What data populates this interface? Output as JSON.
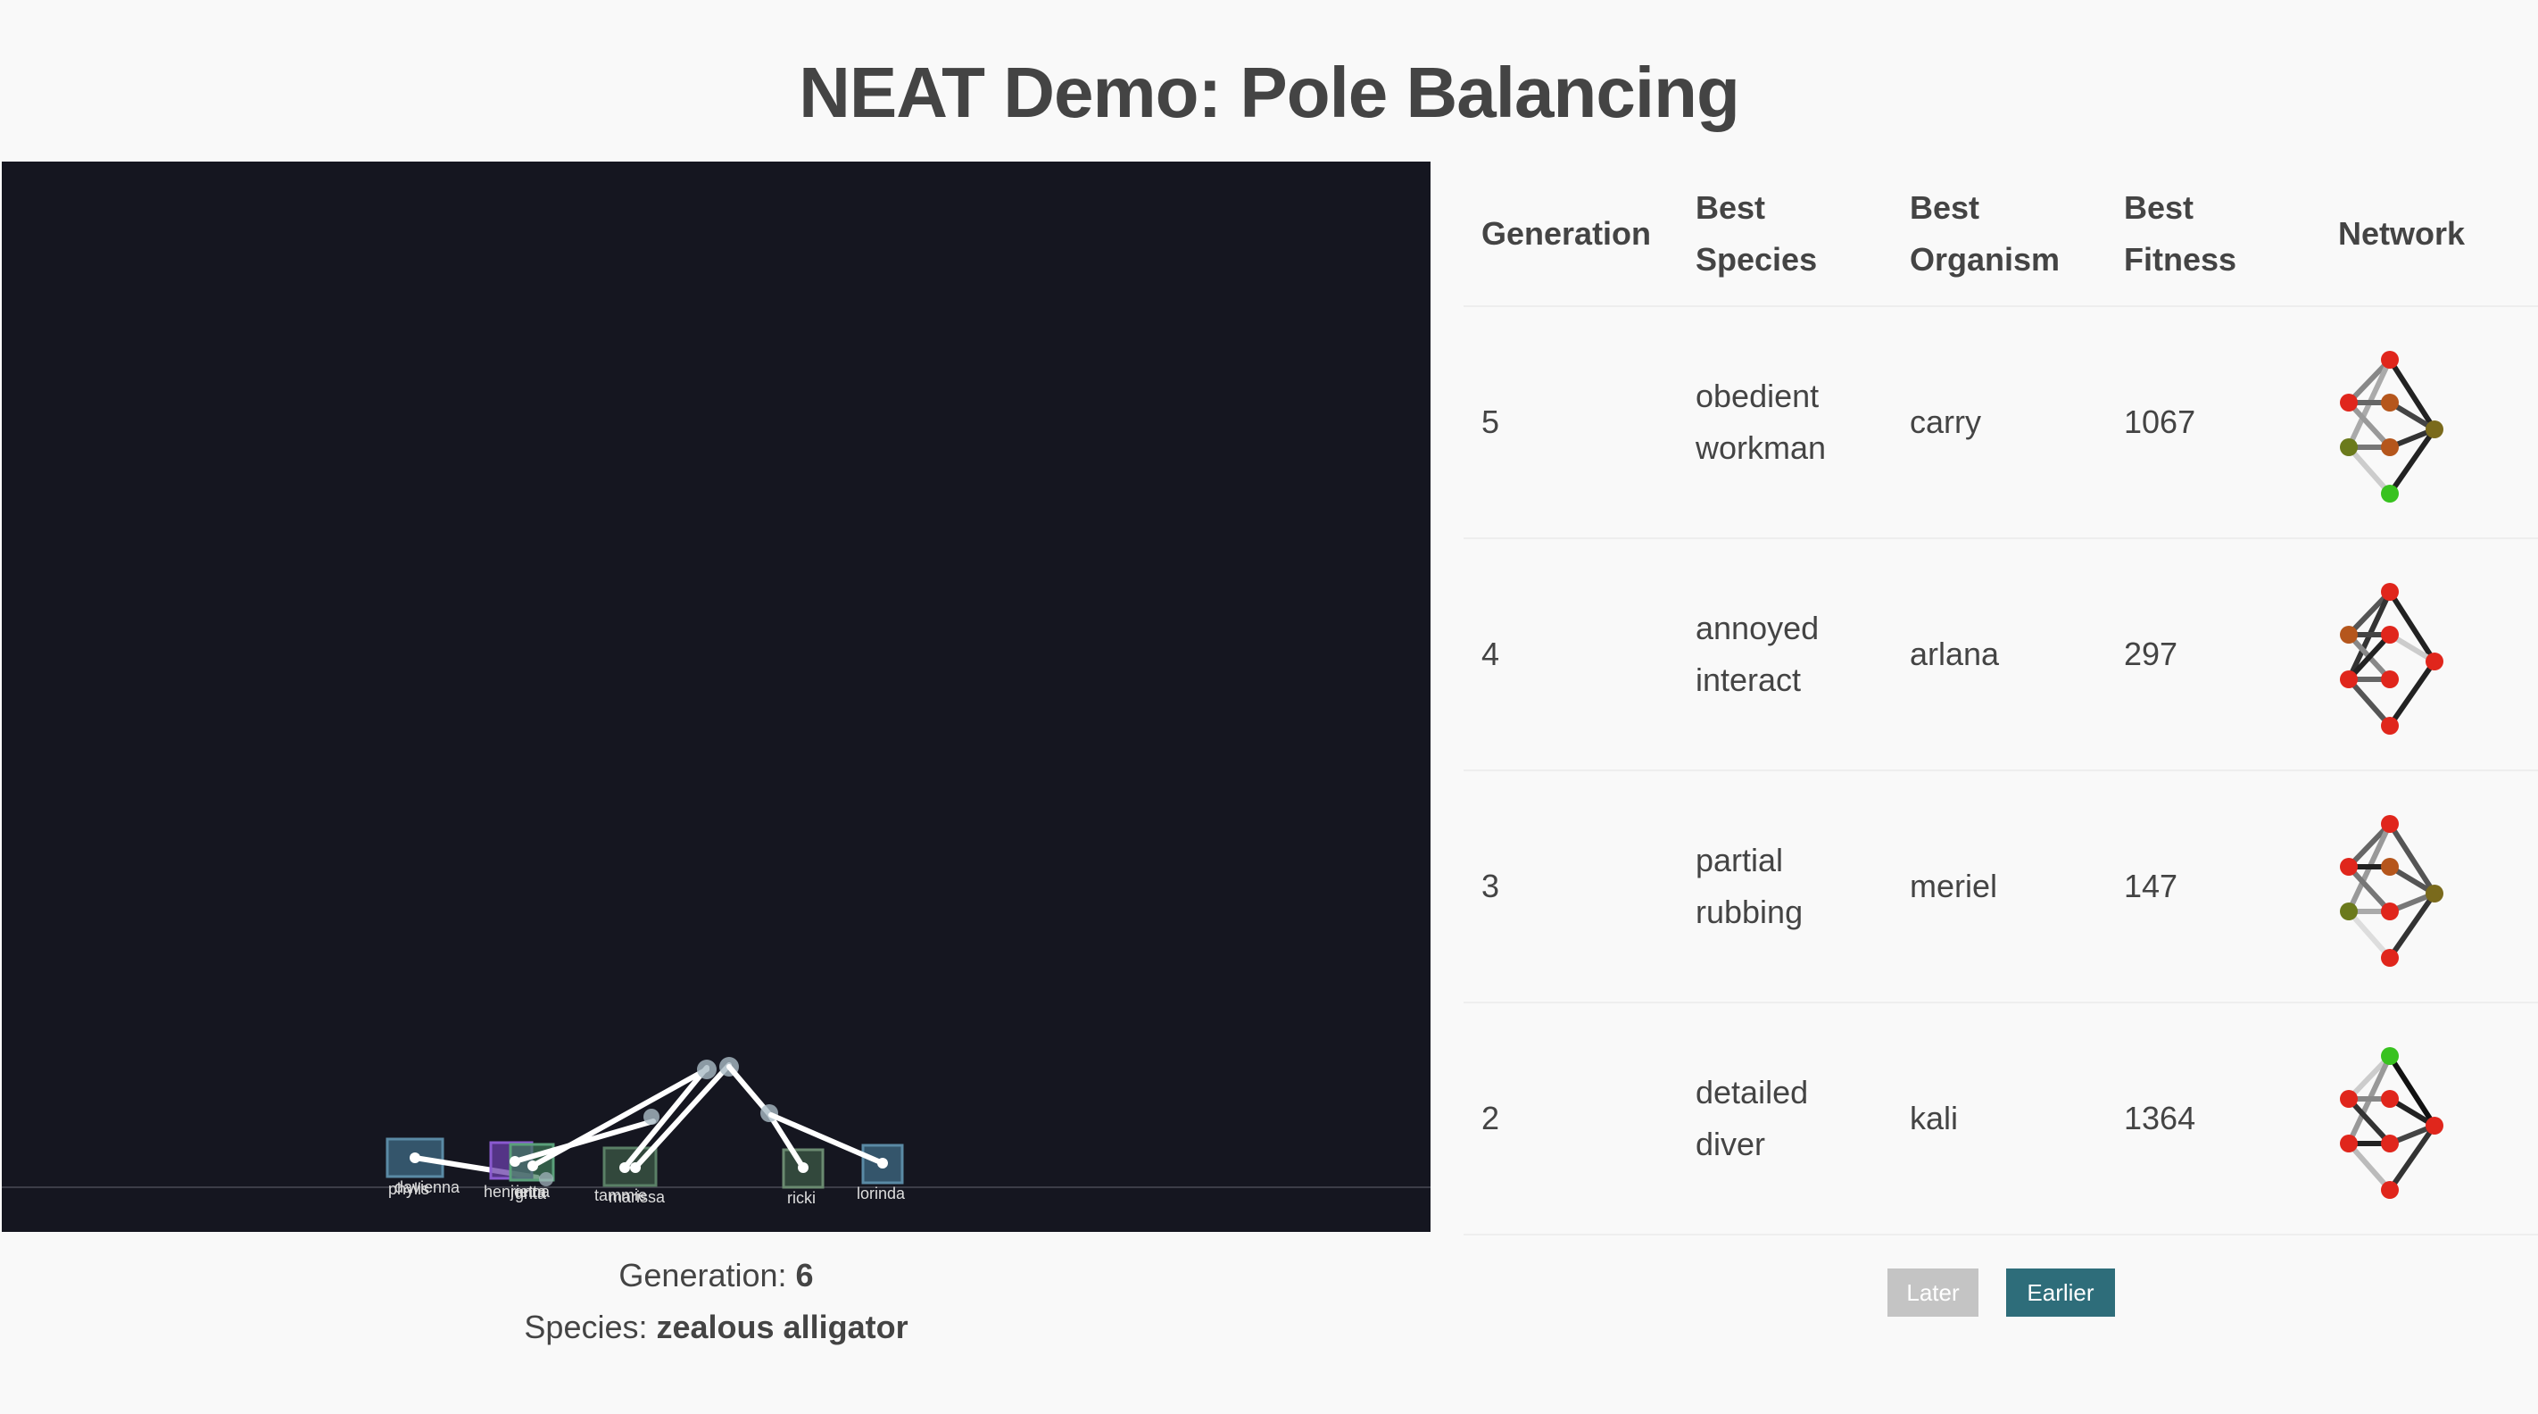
{
  "page": {
    "title": "NEAT Demo: Pole Balancing"
  },
  "simulation": {
    "generation_label": "Generation:",
    "generation_value": "6",
    "species_label": "Species:",
    "species_value": "zealous alligator",
    "carts": [
      {
        "name": "phylis"
      },
      {
        "name": "davienna"
      },
      {
        "name": "henrietta"
      },
      {
        "name": "jenna"
      },
      {
        "name": "grita"
      },
      {
        "name": "tammie"
      },
      {
        "name": "marissa"
      },
      {
        "name": "ricki"
      },
      {
        "name": "lorinda"
      }
    ]
  },
  "table": {
    "headers": {
      "generation": "Generation",
      "species": "Best Species",
      "organism": "Best Organism",
      "fitness": "Best Fitness",
      "network": "Network"
    },
    "rows": [
      {
        "generation": "5",
        "species": "obedient workman",
        "organism": "carry",
        "fitness": "1067"
      },
      {
        "generation": "4",
        "species": "annoyed interact",
        "organism": "arlana",
        "fitness": "297"
      },
      {
        "generation": "3",
        "species": "partial rubbing",
        "organism": "meriel",
        "fitness": "147"
      },
      {
        "generation": "2",
        "species": "detailed diver",
        "organism": "kali",
        "fitness": "1364"
      }
    ]
  },
  "pagination": {
    "later_label": "Later",
    "earlier_label": "Earlier"
  },
  "colors": {
    "sim_background": "#151620",
    "node_red": "#e0261c",
    "node_orange": "#b5561c",
    "node_olive": "#6b7a1c",
    "node_green": "#38c21f",
    "later_button": "#c4c4c4",
    "earlier_button": "#2e6d7a"
  }
}
